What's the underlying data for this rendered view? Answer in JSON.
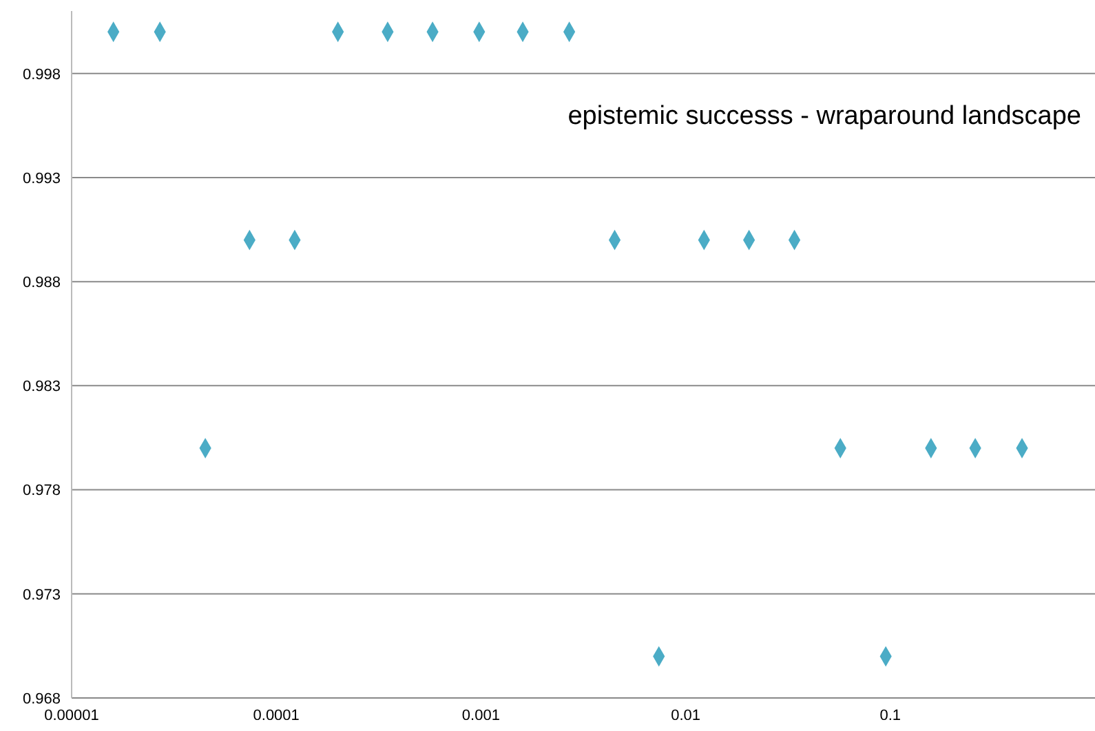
{
  "chart_data": {
    "type": "scatter",
    "title": "epistemic successs - wraparound landscape",
    "log": "x",
    "grid": "y",
    "marker": "diamond",
    "x": [
      1.6e-05,
      2.7e-05,
      4.5e-05,
      7.4e-05,
      0.000123,
      0.0002,
      0.00035,
      0.00058,
      0.00098,
      0.0016,
      0.0027,
      0.0045,
      0.0074,
      0.0123,
      0.0204,
      0.034,
      0.057,
      0.095,
      0.158,
      0.26,
      0.44
    ],
    "series": [
      {
        "color": "#4bacc6",
        "values": [
          1,
          1,
          0.98,
          0.99,
          0.99,
          1,
          1,
          1,
          1,
          1,
          1,
          0.99,
          0.97,
          0.99,
          0.99,
          0.99,
          0.98,
          0.97,
          0.98,
          0.98,
          0.98
        ]
      }
    ],
    "xlim": [
      1e-05,
      1
    ],
    "xticks": [
      {
        "value": 1e-05,
        "label": "0.00001"
      },
      0.0001,
      0.001,
      0.01,
      0.1
    ],
    "ylim": [
      0.968,
      1.001
    ],
    "yticks": [
      0.968,
      0.973,
      0.978,
      0.983,
      0.988,
      0.993,
      0.998
    ]
  }
}
